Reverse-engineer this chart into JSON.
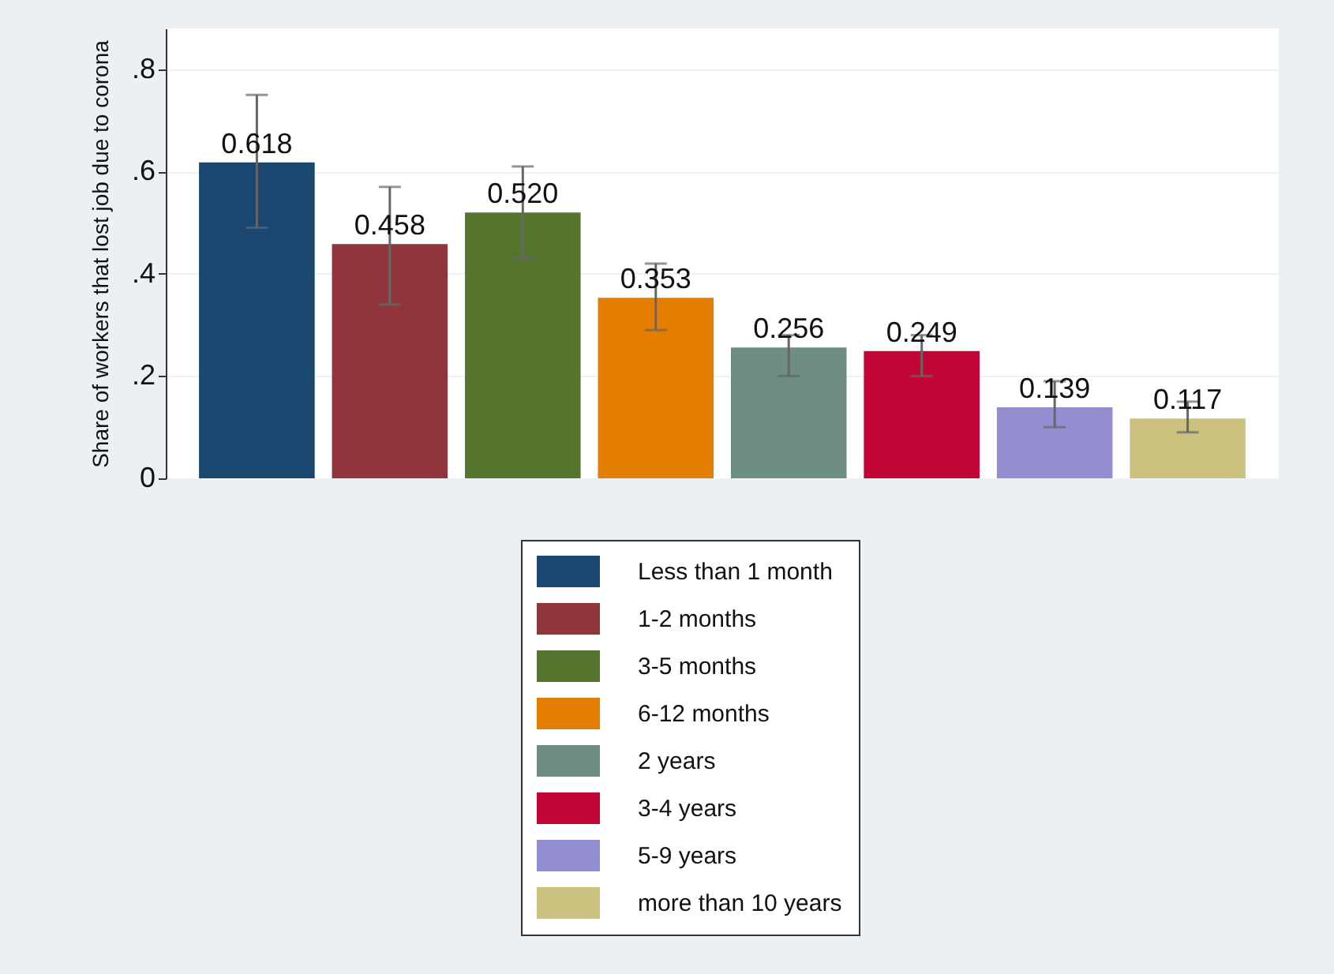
{
  "chart_data": {
    "type": "bar",
    "ylabel": "Share of workers that lost job due to corona",
    "categories": [
      null,
      null,
      null,
      null,
      null,
      null,
      null,
      null
    ],
    "series": [
      {
        "name": "Less than 1 month",
        "color": "#1a476f",
        "values": [
          0.618,
          null,
          null,
          null,
          null,
          null,
          null,
          null
        ],
        "errors": [
          [
            0.49,
            0.75
          ],
          null,
          null,
          null,
          null,
          null,
          null,
          null
        ],
        "value_labels": [
          "0.618",
          null,
          null,
          null,
          null,
          null,
          null,
          null
        ]
      },
      {
        "name": "1-2 months",
        "color": "#90353b",
        "values": [
          null,
          0.458,
          null,
          null,
          null,
          null,
          null,
          null
        ],
        "errors": [
          null,
          [
            0.34,
            0.57
          ],
          null,
          null,
          null,
          null,
          null,
          null
        ],
        "value_labels": [
          null,
          "0.458",
          null,
          null,
          null,
          null,
          null,
          null
        ]
      },
      {
        "name": "3-5 months",
        "color": "#55752f",
        "values": [
          null,
          null,
          0.52,
          null,
          null,
          null,
          null,
          null
        ],
        "errors": [
          null,
          null,
          [
            0.43,
            0.61
          ],
          null,
          null,
          null,
          null,
          null
        ],
        "value_labels": [
          null,
          null,
          "0.520",
          null,
          null,
          null,
          null,
          null
        ]
      },
      {
        "name": "6-12 months",
        "color": "#e37e00",
        "values": [
          null,
          null,
          null,
          0.353,
          null,
          null,
          null,
          null
        ],
        "errors": [
          null,
          null,
          null,
          [
            0.29,
            0.42
          ],
          null,
          null,
          null,
          null
        ],
        "value_labels": [
          null,
          null,
          null,
          "0.353",
          null,
          null,
          null,
          null
        ]
      },
      {
        "name": "2 years",
        "color": "#6e8e84",
        "values": [
          null,
          null,
          null,
          null,
          0.256,
          null,
          null,
          null
        ],
        "errors": [
          null,
          null,
          null,
          null,
          [
            0.2,
            0.28
          ],
          null,
          null,
          null
        ],
        "value_labels": [
          null,
          null,
          null,
          null,
          "0.256",
          null,
          null,
          null
        ]
      },
      {
        "name": "3-4 years",
        "color": "#c10534",
        "values": [
          null,
          null,
          null,
          null,
          null,
          0.249,
          null,
          null
        ],
        "errors": [
          null,
          null,
          null,
          null,
          null,
          [
            0.2,
            0.28
          ],
          null,
          null
        ],
        "value_labels": [
          null,
          null,
          null,
          null,
          null,
          "0.249",
          null,
          null
        ]
      },
      {
        "name": "5-9 years",
        "color": "#938dd2",
        "values": [
          null,
          null,
          null,
          null,
          null,
          null,
          0.139,
          null
        ],
        "errors": [
          null,
          null,
          null,
          null,
          null,
          null,
          [
            0.1,
            0.19
          ],
          null
        ],
        "value_labels": [
          null,
          null,
          null,
          null,
          null,
          null,
          "0.139",
          null
        ]
      },
      {
        "name": "more than 10 years",
        "color": "#cac27e",
        "values": [
          null,
          null,
          null,
          null,
          null,
          null,
          null,
          0.117
        ],
        "errors": [
          null,
          null,
          null,
          null,
          null,
          null,
          null,
          [
            0.09,
            0.15
          ]
        ],
        "value_labels": [
          null,
          null,
          null,
          null,
          null,
          null,
          null,
          "0.117"
        ]
      }
    ],
    "ylim": [
      0,
      0.88
    ],
    "yticks": [
      {
        "value": 0,
        "label": "0"
      },
      {
        "value": 0.2,
        "label": ".2"
      },
      {
        "value": 0.4,
        "label": ".4"
      },
      {
        "value": 0.6,
        "label": ".6"
      },
      {
        "value": 0.8,
        "label": ".8"
      }
    ],
    "grid": "y",
    "legend": "bottom",
    "tick_labels": "y"
  }
}
